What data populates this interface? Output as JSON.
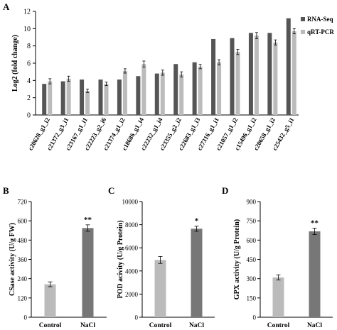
{
  "chart_data": [
    {
      "panel": "A",
      "type": "bar",
      "ylabel": "Log2 (fold change)",
      "ylim": [
        0,
        12
      ],
      "yticks": [
        0,
        2,
        4,
        6,
        8,
        10,
        12
      ],
      "legend_position": "top-right",
      "categories": [
        "c20628_g1_i2",
        "c21372_g3_i1",
        "c23167_g1_i1",
        "c22223_g2_i6",
        "c21374_g1_i2",
        "c18686_g1_i4",
        "c22232_g1_i4",
        "c23355_g2_i2",
        "c22683_g1_i3",
        "c27316_g1_i1",
        "c21057_g1_i2",
        "c15496_g1_i2",
        "c20658_g1_i2",
        "c25432_g5_i1"
      ],
      "series": [
        {
          "name": "RNA-Seq",
          "values": [
            3.6,
            3.9,
            4.1,
            4.1,
            4.1,
            4.5,
            4.8,
            5.9,
            6.1,
            8.8,
            8.9,
            9.5,
            9.5,
            11.2
          ],
          "error": [
            0,
            0,
            0,
            0,
            0,
            0,
            0,
            0,
            0,
            0,
            0,
            0,
            0,
            0
          ],
          "color": "#555555"
        },
        {
          "name": "qRT-PCR",
          "values": [
            3.9,
            4.2,
            2.8,
            3.6,
            5.1,
            5.9,
            4.9,
            4.7,
            5.6,
            6.1,
            7.3,
            9.2,
            8.4,
            9.7
          ],
          "error": [
            0.3,
            0.3,
            0.2,
            0.2,
            0.25,
            0.35,
            0.3,
            0.3,
            0.25,
            0.3,
            0.3,
            0.35,
            0.3,
            0.3
          ],
          "color": "#bbbbbb"
        }
      ]
    },
    {
      "panel": "B",
      "type": "bar",
      "ylabel": "CSase activity (U/g FW)",
      "ylim": [
        0,
        720
      ],
      "yticks": [
        0,
        120,
        240,
        360,
        480,
        600,
        720
      ],
      "categories": [
        "Control",
        "NaCl"
      ],
      "values": [
        205,
        555
      ],
      "error": [
        15,
        20
      ],
      "colors": [
        "#bbbbbb",
        "#777777"
      ],
      "annotation": "**"
    },
    {
      "panel": "C",
      "type": "bar",
      "ylabel": "POD acivity (U/g Protein)",
      "ylim": [
        0,
        10000
      ],
      "yticks": [
        0,
        2000,
        4000,
        6000,
        8000,
        10000
      ],
      "categories": [
        "Control",
        "NaCl"
      ],
      "values": [
        4950,
        7650
      ],
      "error": [
        300,
        220
      ],
      "colors": [
        "#bbbbbb",
        "#777777"
      ],
      "annotation": "*"
    },
    {
      "panel": "D",
      "type": "bar",
      "ylabel": "GPX activity (U/g Protein)",
      "ylim": [
        0,
        900
      ],
      "yticks": [
        0,
        150,
        300,
        450,
        600,
        750,
        900
      ],
      "categories": [
        "Control",
        "NaCl"
      ],
      "values": [
        310,
        668
      ],
      "error": [
        20,
        25
      ],
      "colors": [
        "#bbbbbb",
        "#777777"
      ],
      "annotation": "**"
    }
  ]
}
